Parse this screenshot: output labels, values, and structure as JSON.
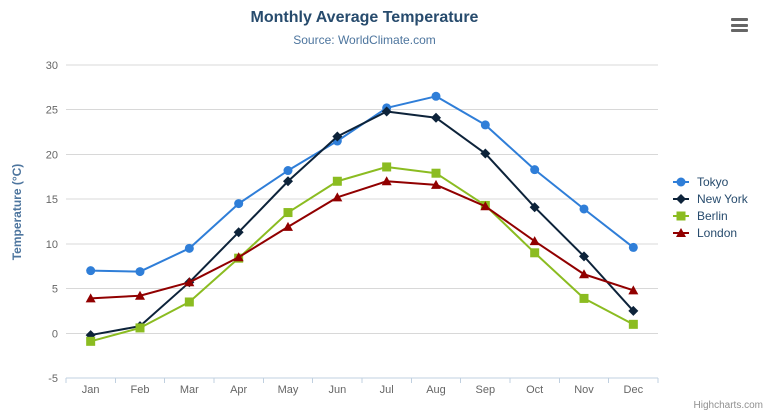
{
  "header": {
    "menu_tooltip": "Chart context menu"
  },
  "credits": {
    "label": "Highcharts.com"
  },
  "chart_data": {
    "type": "line",
    "title": "Monthly Average Temperature",
    "subtitle": "Source: WorldClimate.com",
    "xlabel": "",
    "ylabel": "Temperature (°C)",
    "categories": [
      "Jan",
      "Feb",
      "Mar",
      "Apr",
      "May",
      "Jun",
      "Jul",
      "Aug",
      "Sep",
      "Oct",
      "Nov",
      "Dec"
    ],
    "ylim": [
      -5,
      30
    ],
    "yticks": [
      30,
      25,
      20,
      15,
      10,
      5,
      0,
      -5
    ],
    "grid": true,
    "legend_position": "right",
    "series": [
      {
        "name": "Tokyo",
        "color": "#2f7ed8",
        "marker": "circle",
        "values": [
          7.0,
          6.9,
          9.5,
          14.5,
          18.2,
          21.5,
          25.2,
          26.5,
          23.3,
          18.3,
          13.9,
          9.6
        ]
      },
      {
        "name": "New York",
        "color": "#0d233a",
        "marker": "diamond",
        "values": [
          -0.2,
          0.8,
          5.7,
          11.3,
          17.0,
          22.0,
          24.8,
          24.1,
          20.1,
          14.1,
          8.6,
          2.5
        ]
      },
      {
        "name": "Berlin",
        "color": "#8bbc21",
        "marker": "square",
        "values": [
          -0.9,
          0.6,
          3.5,
          8.4,
          13.5,
          17.0,
          18.6,
          17.9,
          14.3,
          9.0,
          3.9,
          1.0
        ]
      },
      {
        "name": "London",
        "color": "#910000",
        "marker": "triangle",
        "values": [
          3.9,
          4.2,
          5.7,
          8.5,
          11.9,
          15.2,
          17.0,
          16.6,
          14.2,
          10.3,
          6.6,
          4.8
        ]
      }
    ],
    "colors": {
      "title": "#274b6d",
      "subtitle": "#4d759e",
      "axis_label": "#666666",
      "axis_title": "#4d759e",
      "grid": "#d8d8d8",
      "axis_line": "#c0d0e0",
      "legend_text": "#274b6d",
      "credits": "#909090"
    }
  }
}
